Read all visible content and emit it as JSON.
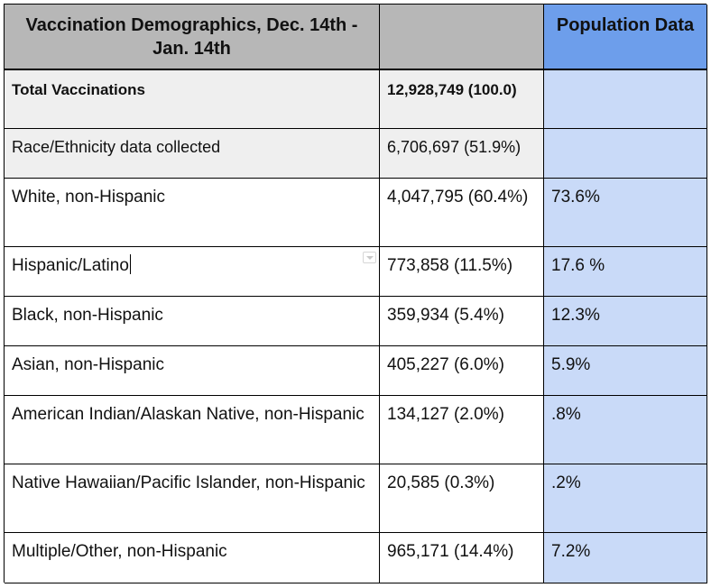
{
  "header": {
    "title": "Vaccination Demographics, Dec. 14th - Jan. 14th",
    "middle": "",
    "population": "Population Data"
  },
  "rows": [
    {
      "label": "Total Vaccinations",
      "count": "12,928,749 (100.0)",
      "population": ""
    },
    {
      "label": "Race/Ethnicity data collected",
      "count": "6,706,697 (51.9%)",
      "population": ""
    },
    {
      "label": "White, non-Hispanic",
      "count": "4,047,795 (60.4%)",
      "population": "73.6%"
    },
    {
      "label": "Hispanic/Latino",
      "count": "773,858 (11.5%)",
      "population": "17.6 %"
    },
    {
      "label": "Black, non-Hispanic",
      "count": "359,934 (5.4%)",
      "population": "12.3%"
    },
    {
      "label": "Asian, non-Hispanic",
      "count": "405,227 (6.0%)",
      "population": "5.9%"
    },
    {
      "label": "American Indian/Alaskan Native, non-Hispanic",
      "count": "134,127 (2.0%)",
      "population": ".8%"
    },
    {
      "label": "Native Hawaiian/Pacific Islander, non-Hispanic",
      "count": "20,585 (0.3%)",
      "population": ".2%"
    },
    {
      "label": "Multiple/Other, non-Hispanic",
      "count": "965,171 (14.4%)",
      "population": "7.2%"
    }
  ],
  "colors": {
    "header_gray": "#b7b7b7",
    "header_blue": "#6d9eeb",
    "row_gray": "#efefef",
    "population_blue": "#c9daf8"
  },
  "icons": {
    "cell_dropdown": "dropdown-arrow-icon"
  }
}
